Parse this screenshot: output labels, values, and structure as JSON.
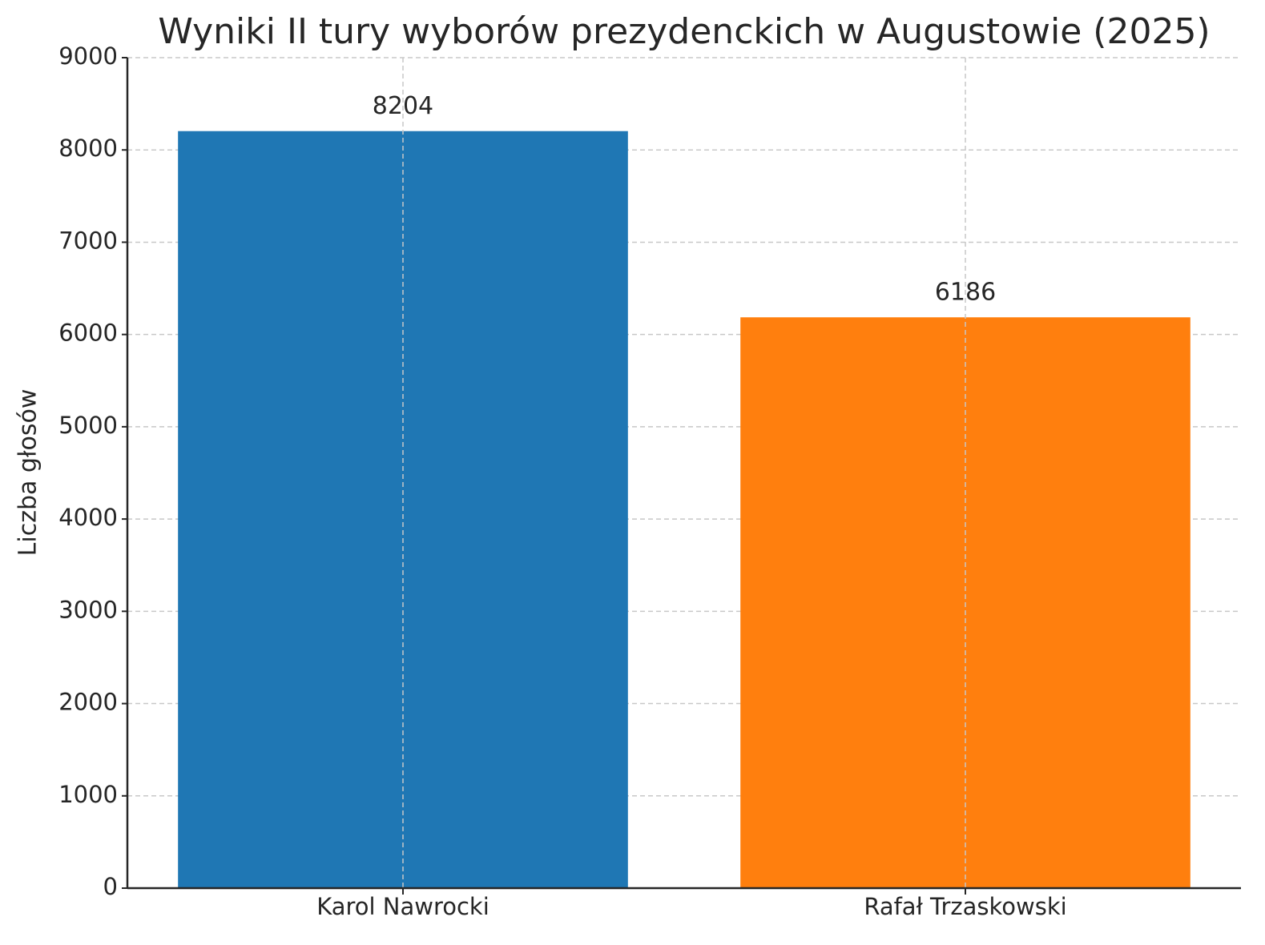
{
  "chart_data": {
    "type": "bar",
    "title": "Wyniki II tury wyborów prezydenckich w Augustowie (2025)",
    "ylabel": "Liczba głosów",
    "categories": [
      "Karol Nawrocki",
      "Rafał Trzaskowski"
    ],
    "values": [
      8204,
      6186
    ],
    "colors": [
      "#1f77b4",
      "#ff7f0e"
    ],
    "ylim": [
      0,
      9000
    ],
    "yticks": [
      0,
      1000,
      2000,
      3000,
      4000,
      5000,
      6000,
      7000,
      8000,
      9000
    ],
    "grid": true
  }
}
